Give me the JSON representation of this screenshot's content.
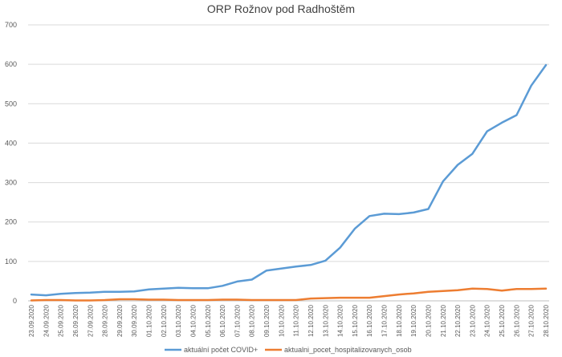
{
  "chart_data": {
    "type": "line",
    "title": "ORP Rožnov pod Radhoštěm",
    "xlabel": "",
    "ylabel": "",
    "ylim": [
      0,
      700
    ],
    "yticks": [
      0,
      100,
      200,
      300,
      400,
      500,
      600,
      700
    ],
    "grid": true,
    "legend_position": "bottom",
    "x": [
      "23.09.2020",
      "24.09.2020",
      "25.09.2020",
      "26.09.2020",
      "27.09.2020",
      "28.09.2020",
      "29.09.2020",
      "30.09.2020",
      "01.10.2020",
      "02.10.2020",
      "03.10.2020",
      "04.10.2020",
      "05.10.2020",
      "06.10.2020",
      "07.10.2020",
      "08.10.2020",
      "09.10.2020",
      "10.10.2020",
      "11.10.2020",
      "12.10.2020",
      "13.10.2020",
      "14.10.2020",
      "15.10.2020",
      "16.10.2020",
      "17.10.2020",
      "18.10.2020",
      "19.10.2020",
      "20.10.2020",
      "21.10.2020",
      "22.10.2020",
      "23.10.2020",
      "24.10.2020",
      "25.10.2020",
      "26.10.2020",
      "27.10.2020",
      "28.10.2020"
    ],
    "series": [
      {
        "name": "aktuální počet COVID+",
        "color": "#5b9bd5",
        "values": [
          16,
          14,
          18,
          20,
          21,
          23,
          23,
          24,
          29,
          31,
          33,
          32,
          32,
          38,
          49,
          54,
          77,
          82,
          87,
          91,
          102,
          135,
          183,
          215,
          221,
          220,
          224,
          233,
          303,
          345,
          373,
          430,
          452,
          471,
          546,
          598
        ]
      },
      {
        "name": "aktualni_pocet_hospitalizovanych_osob",
        "color": "#ed7d31",
        "values": [
          1,
          2,
          2,
          1,
          1,
          2,
          4,
          4,
          3,
          3,
          2,
          2,
          2,
          3,
          3,
          2,
          2,
          2,
          2,
          6,
          7,
          8,
          8,
          8,
          12,
          16,
          19,
          23,
          25,
          27,
          31,
          30,
          26,
          30,
          30,
          31
        ]
      }
    ]
  }
}
